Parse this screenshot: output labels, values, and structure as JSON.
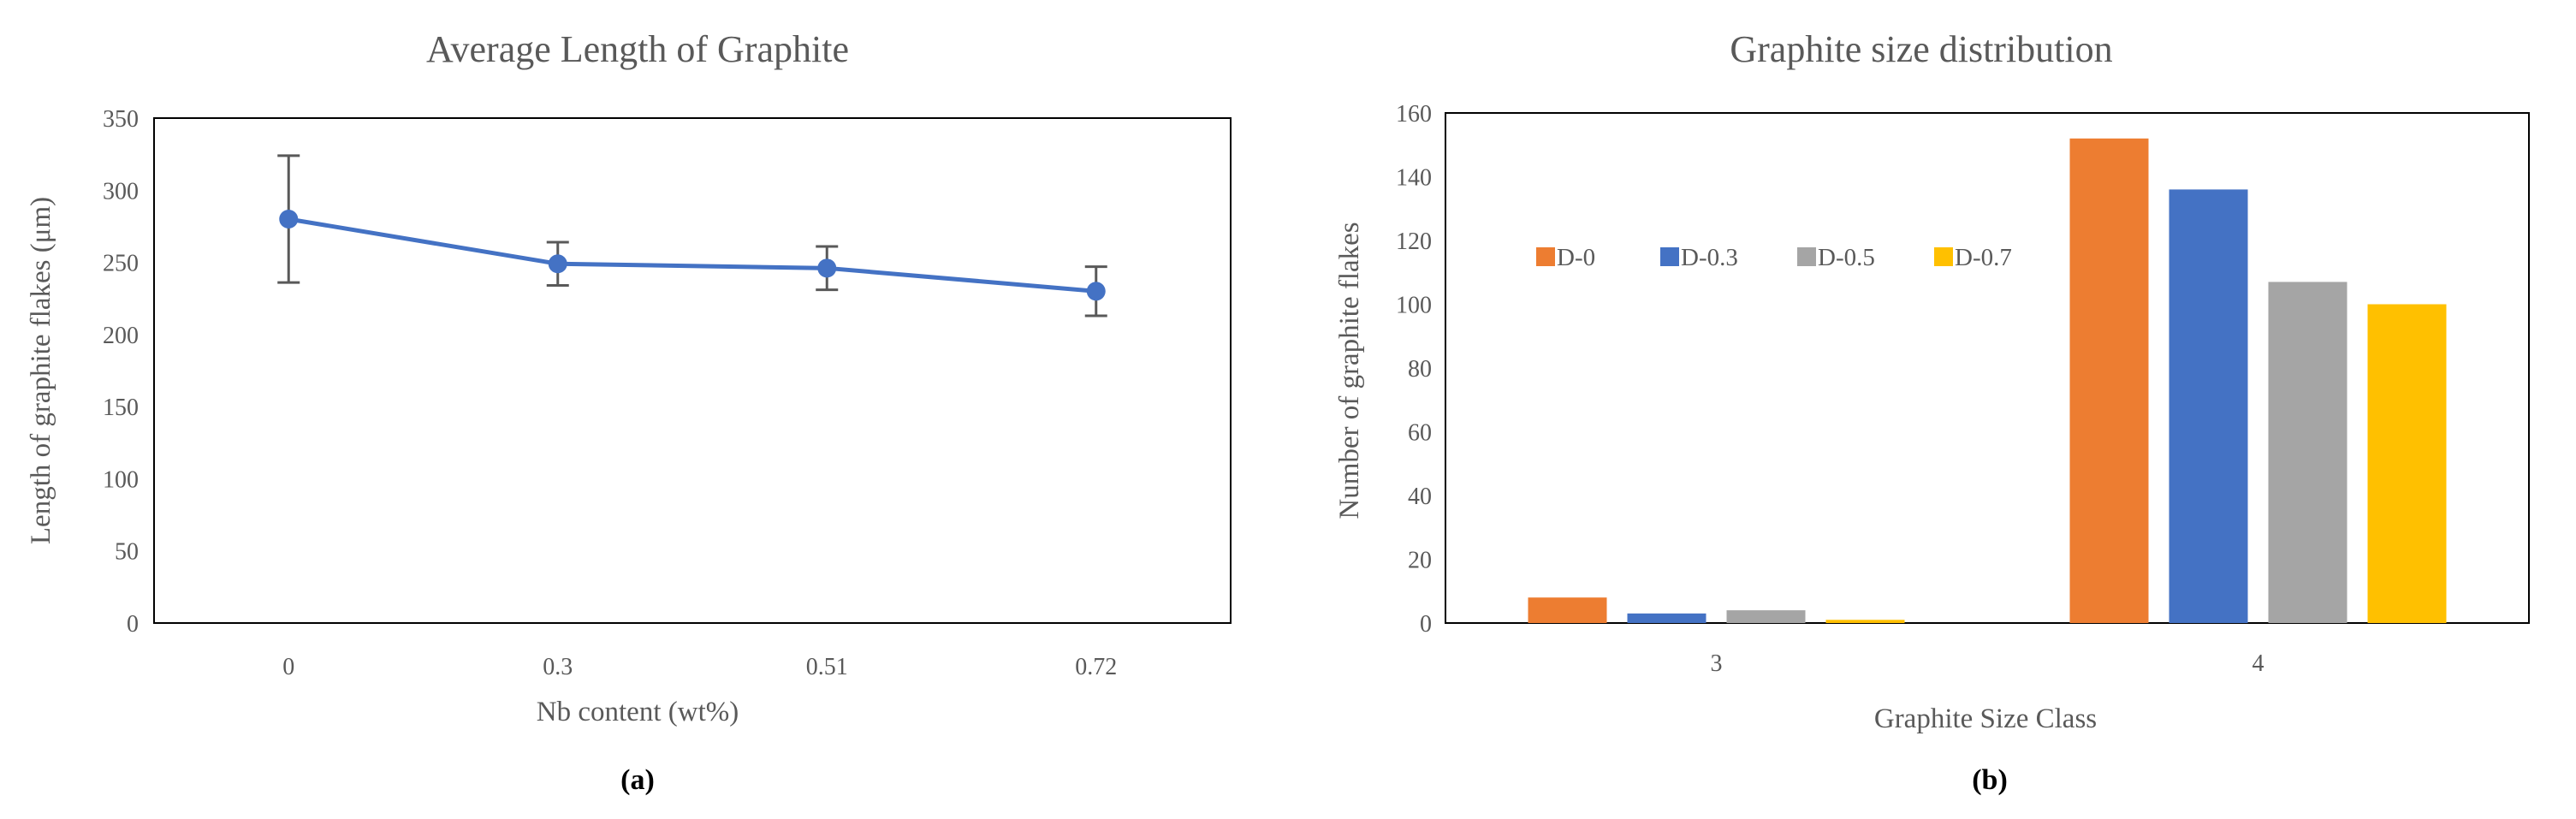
{
  "figure": {
    "panel_a_label": "(a)",
    "panel_b_label": "(b)"
  },
  "chart_data": [
    {
      "type": "line",
      "title": "Average Length of Graphite",
      "xlabel": "Nb content (wt%)",
      "ylabel": "Length of graphite flakes (μm)",
      "categories": [
        "0",
        "0.3",
        "0.51",
        "0.72"
      ],
      "series": [
        {
          "values": [
            280,
            249,
            246,
            230
          ],
          "error": [
            44,
            15,
            15,
            17
          ],
          "color": "#4472C4"
        }
      ],
      "ylim": [
        0,
        350
      ],
      "yticks": [
        "0",
        "50",
        "100",
        "150",
        "200",
        "250",
        "300",
        "350"
      ],
      "grid": false,
      "error_bar_color": "#595959"
    },
    {
      "type": "bar",
      "title": "Graphite size distribution",
      "xlabel": "Graphite Size Class",
      "ylabel": "Number of graphite flakes",
      "categories": [
        "3",
        "4"
      ],
      "series": [
        {
          "name": "D-0",
          "values": [
            8,
            152
          ],
          "color": "#ED7D31"
        },
        {
          "name": "D-0.3",
          "values": [
            3,
            136
          ],
          "color": "#4472C4"
        },
        {
          "name": "D-0.5",
          "values": [
            4,
            107
          ],
          "color": "#A5A5A5"
        },
        {
          "name": "D-0.7",
          "values": [
            1,
            100
          ],
          "color": "#FFC000"
        }
      ],
      "ylim": [
        0,
        160
      ],
      "yticks": [
        "0",
        "20",
        "40",
        "60",
        "80",
        "100",
        "120",
        "140",
        "160"
      ],
      "legend": "left",
      "grid": false
    }
  ]
}
